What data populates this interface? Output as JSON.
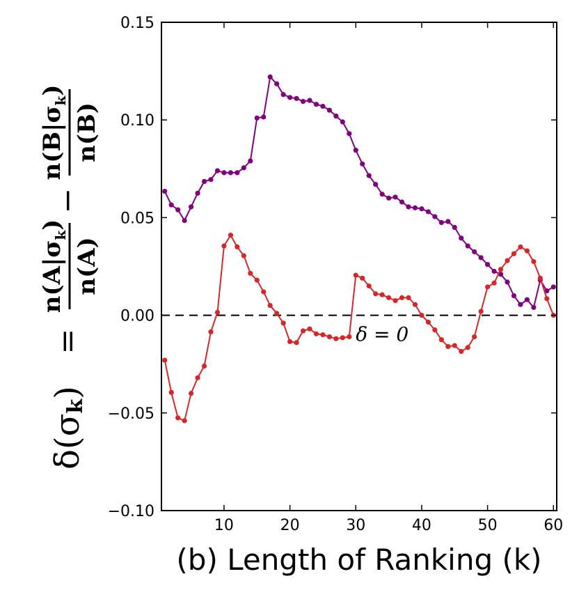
{
  "chart_data": {
    "type": "line",
    "xlabel": "(b) Length of Ranking (k)",
    "ylabel": {
      "prefix": "δ(σ",
      "prefix_sub": "k",
      "prefix_close": ")",
      "equals": "=",
      "minus": "−",
      "frac_a_num": "n(A|σ",
      "frac_a_den": "n(A)",
      "frac_b_num": "n(B|σ",
      "frac_b_den": "n(B)",
      "sub_k": "k",
      "num_close": ")"
    },
    "xlim": [
      0.5,
      60.5
    ],
    "ylim": [
      -0.1,
      0.15
    ],
    "xticks": [
      10,
      20,
      30,
      40,
      50,
      60
    ],
    "xtick_labels": [
      "10",
      "20",
      "30",
      "40",
      "50",
      "60"
    ],
    "yticks": [
      -0.1,
      -0.05,
      0.0,
      0.05,
      0.1,
      0.15
    ],
    "ytick_labels": [
      "−0.10",
      "−0.05",
      "0.00",
      "0.05",
      "0.10",
      "0.15"
    ],
    "reference_line": {
      "y": 0,
      "style": "dashed"
    },
    "annotation": {
      "text": "δ = 0",
      "x": 30,
      "y": -0.006
    },
    "series": [
      {
        "name": "purple",
        "color": "#800080",
        "x": [
          1,
          2,
          3,
          4,
          5,
          6,
          7,
          8,
          9,
          10,
          11,
          12,
          13,
          14,
          15,
          16,
          17,
          18,
          19,
          20,
          21,
          22,
          23,
          24,
          25,
          26,
          27,
          28,
          29,
          30,
          31,
          32,
          33,
          34,
          35,
          36,
          37,
          38,
          39,
          40,
          41,
          42,
          43,
          44,
          45,
          46,
          47,
          48,
          49,
          50,
          51,
          52,
          53,
          54,
          55,
          56,
          57,
          58,
          59,
          60
        ],
        "values": [
          0.0635,
          0.0565,
          0.054,
          0.0485,
          0.0555,
          0.0625,
          0.0685,
          0.0695,
          0.074,
          0.073,
          0.073,
          0.073,
          0.0755,
          0.079,
          0.101,
          0.1015,
          0.122,
          0.1185,
          0.113,
          0.1115,
          0.111,
          0.1095,
          0.11,
          0.108,
          0.107,
          0.105,
          0.102,
          0.099,
          0.093,
          0.0845,
          0.0775,
          0.0715,
          0.067,
          0.062,
          0.06,
          0.0605,
          0.058,
          0.0555,
          0.055,
          0.0545,
          0.053,
          0.0505,
          0.0475,
          0.048,
          0.045,
          0.0395,
          0.0355,
          0.0325,
          0.0295,
          0.026,
          0.0225,
          0.021,
          0.017,
          0.01,
          0.0055,
          0.008,
          0.004,
          0.018,
          0.0125,
          0.0145
        ]
      },
      {
        "name": "red",
        "color": "#d62728",
        "x": [
          1,
          2,
          3,
          4,
          5,
          6,
          7,
          8,
          9,
          10,
          11,
          12,
          13,
          14,
          15,
          16,
          17,
          18,
          19,
          20,
          21,
          22,
          23,
          24,
          25,
          26,
          27,
          28,
          29,
          30,
          31,
          32,
          33,
          34,
          35,
          36,
          37,
          38,
          39,
          40,
          41,
          42,
          43,
          44,
          45,
          46,
          47,
          48,
          49,
          50,
          51,
          52,
          53,
          54,
          55,
          56,
          57,
          58,
          59,
          60
        ],
        "values": [
          -0.023,
          -0.0395,
          -0.0525,
          -0.054,
          -0.04,
          -0.032,
          -0.026,
          -0.0085,
          0.0015,
          0.0355,
          0.041,
          0.035,
          0.0305,
          0.0215,
          0.018,
          0.012,
          0.005,
          0.001,
          -0.004,
          -0.0135,
          -0.014,
          -0.008,
          -0.007,
          -0.0095,
          -0.01,
          -0.011,
          -0.012,
          -0.0115,
          -0.011,
          0.0205,
          0.019,
          0.015,
          0.011,
          0.0105,
          0.009,
          0.0075,
          0.009,
          0.009,
          0.0055,
          0.0,
          -0.0035,
          -0.0075,
          -0.0125,
          -0.016,
          -0.0155,
          -0.0185,
          -0.0165,
          -0.011,
          0.002,
          0.0145,
          0.0165,
          0.0235,
          0.028,
          0.0315,
          0.035,
          0.033,
          0.0275,
          0.019,
          0.0085,
          0.0
        ]
      }
    ]
  }
}
